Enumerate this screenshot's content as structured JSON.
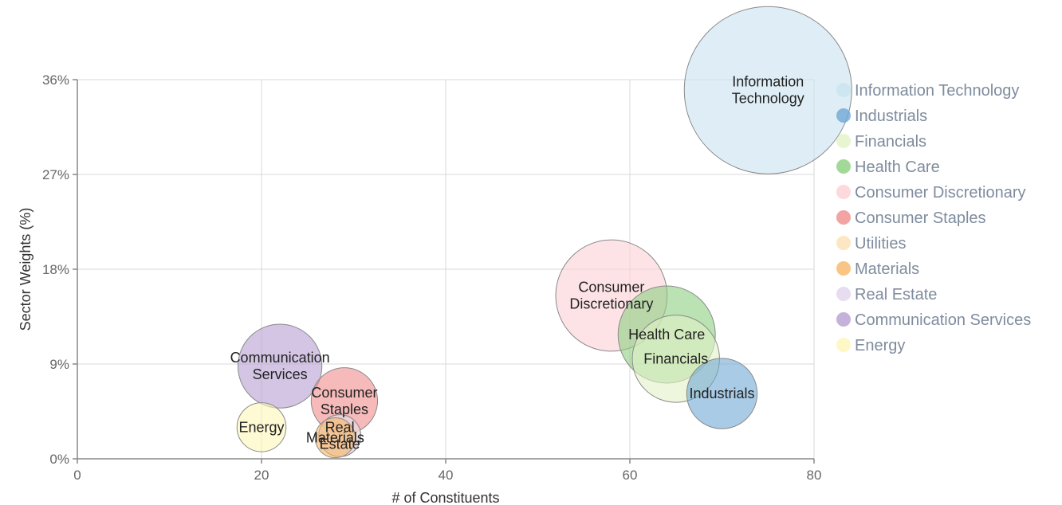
{
  "chart_data": {
    "type": "bubble",
    "xlabel": "# of Constituents",
    "ylabel": "Sector Weights (%)",
    "xlim": [
      0,
      80
    ],
    "ylim": [
      0,
      36
    ],
    "x_ticks": [
      "0",
      "20",
      "40",
      "60",
      "80"
    ],
    "y_ticks": [
      "0%",
      "9%",
      "18%",
      "27%",
      "36%"
    ],
    "grid": true,
    "legend_position": "right",
    "series": [
      {
        "name": "Information Technology",
        "label": [
          "Information",
          "Technology"
        ],
        "x": 75,
        "y": 35,
        "size": 35,
        "color": "#c9e3f0"
      },
      {
        "name": "Industrials",
        "label": [
          "Industrials"
        ],
        "x": 70,
        "y": 6.2,
        "size": 6.2,
        "color": "#6fa8d6"
      },
      {
        "name": "Financials",
        "label": [
          "Financials"
        ],
        "x": 65,
        "y": 9.5,
        "size": 9.5,
        "color": "#e3f2c6"
      },
      {
        "name": "Health Care",
        "label": [
          "Health Care"
        ],
        "x": 64,
        "y": 11.8,
        "size": 11.8,
        "color": "#8ccf7e"
      },
      {
        "name": "Consumer Discretionary",
        "label": [
          "Consumer",
          "Discretionary"
        ],
        "x": 58,
        "y": 15.5,
        "size": 15.5,
        "color": "#fcd0d5"
      },
      {
        "name": "Consumer Staples",
        "label": [
          "Consumer",
          "Staples"
        ],
        "x": 29,
        "y": 5.5,
        "size": 5.5,
        "color": "#f08c8c"
      },
      {
        "name": "Utilities",
        "label": [],
        "x": 28.5,
        "y": 2.2,
        "size": 2.2,
        "color": "#fde0b4"
      },
      {
        "name": "Materials",
        "label": [
          "Materials"
        ],
        "x": 28,
        "y": 2.0,
        "size": 2.0,
        "color": "#f7b766"
      },
      {
        "name": "Real Estate",
        "label": [
          "Real",
          "Estate"
        ],
        "x": 28.5,
        "y": 2.2,
        "size": 2.2,
        "color": "#e2d4ec"
      },
      {
        "name": "Communication Services",
        "label": [
          "Communication",
          "Services"
        ],
        "x": 22,
        "y": 8.8,
        "size": 8.8,
        "color": "#b59fd1"
      },
      {
        "name": "Energy",
        "label": [
          "Energy"
        ],
        "x": 20,
        "y": 3.0,
        "size": 3.0,
        "color": "#fdf6b8"
      }
    ]
  }
}
